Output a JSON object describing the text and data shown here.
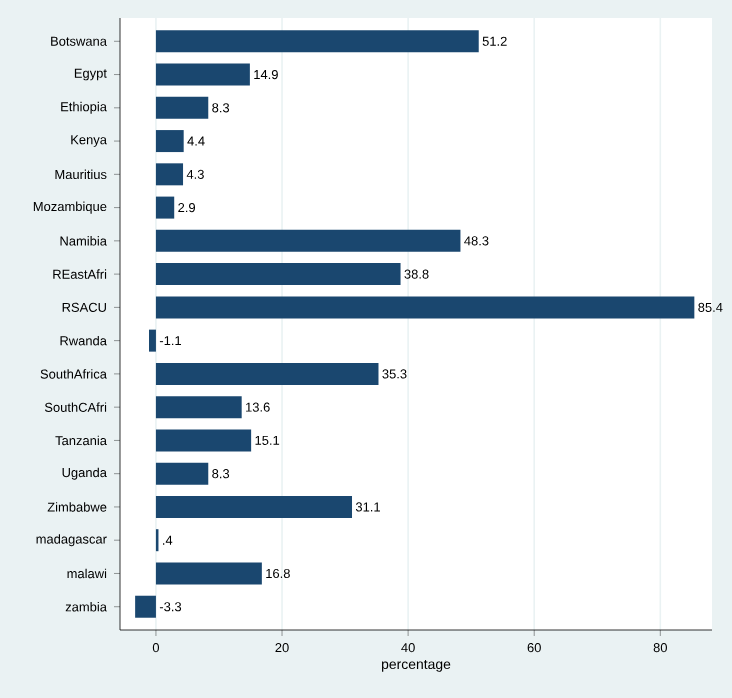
{
  "chart_data": {
    "type": "bar",
    "orientation": "horizontal",
    "xlabel": "percentage",
    "categories": [
      "Botswana",
      "Egypt",
      "Ethiopia",
      "Kenya",
      "Mauritius",
      "Mozambique",
      "Namibia",
      "REastAfri",
      "RSACU",
      "Rwanda",
      "SouthAfrica",
      "SouthCAfri",
      "Tanzania",
      "Uganda",
      "Zimbabwe",
      "madagascar",
      "malawi",
      "zambia"
    ],
    "values": [
      51.2,
      14.9,
      8.3,
      4.4,
      4.3,
      2.9,
      48.3,
      38.8,
      85.4,
      -1.1,
      35.3,
      13.6,
      15.1,
      8.3,
      31.1,
      0.4,
      16.8,
      -3.3
    ],
    "value_labels": [
      "51.2",
      "14.9",
      "8.3",
      "4.4",
      "4.3",
      "2.9",
      "48.3",
      "38.8",
      "85.4",
      "-1.1",
      "35.3",
      "13.6",
      "15.1",
      "8.3",
      "31.1",
      ".4",
      "16.8",
      "-3.3"
    ],
    "color": "#1a476f",
    "xlim": [
      -5.7,
      88.2
    ],
    "xticks": [
      0,
      20,
      40,
      60,
      80
    ],
    "grid": "x"
  }
}
